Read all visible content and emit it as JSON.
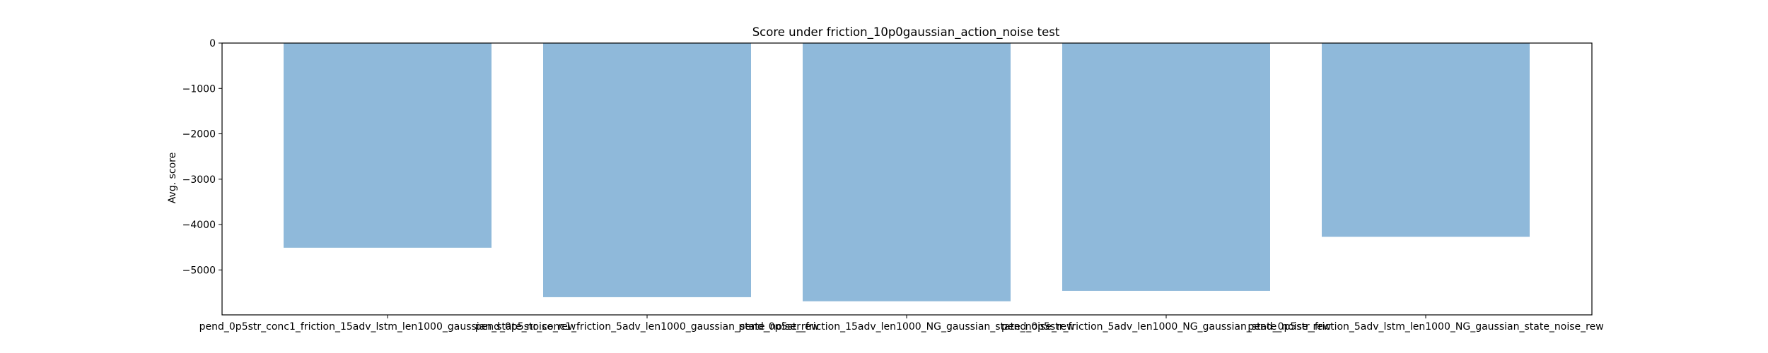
{
  "chart_data": {
    "type": "bar",
    "title": "Score under friction_10p0gaussian_action_noise test",
    "xlabel": "",
    "ylabel": "Avg. score",
    "categories": [
      "pend_0p5str_conc1_friction_15adv_lstm_len1000_gaussian_state_noise_rew",
      "pend_0p5str_conc1_friction_5adv_len1000_gaussian_state_noise_rew",
      "pend_0p5str_friction_15adv_len1000_NG_gaussian_state_noise_rew",
      "pend_0p5str_friction_5adv_len1000_NG_gaussian_state_noise_rew",
      "pend_0p5str_friction_5adv_lstm_len1000_NG_gaussian_state_noise_rew"
    ],
    "values": [
      -4510,
      -5600,
      -5690,
      -5460,
      -4270
    ],
    "ylim": [
      -5990,
      0
    ],
    "yticks": [
      0,
      -1000,
      -2000,
      -3000,
      -4000,
      -5000
    ],
    "ytick_labels": [
      "0",
      "−1000",
      "−2000",
      "−3000",
      "−4000",
      "−5000"
    ],
    "bar_color": "#8fb9da",
    "grid": false,
    "legend": "none"
  }
}
